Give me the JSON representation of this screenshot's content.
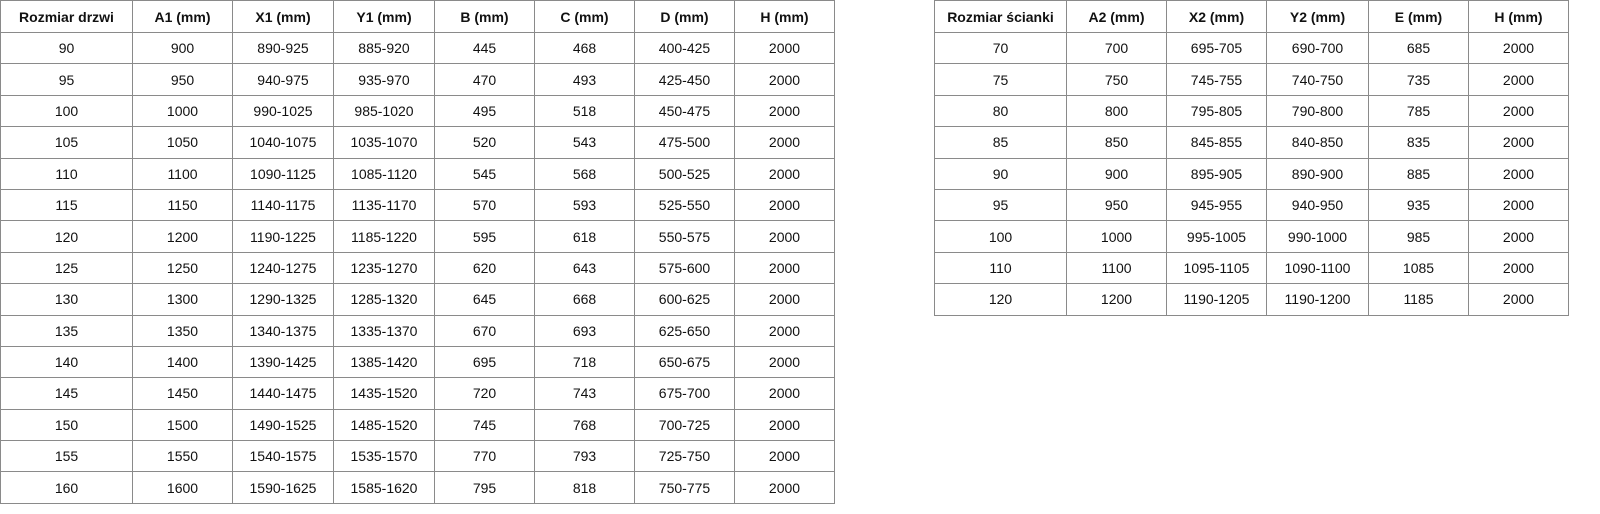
{
  "door_table": {
    "headers": [
      "Rozmiar drzwi",
      "A1 (mm)",
      "X1 (mm)",
      "Y1 (mm)",
      "B (mm)",
      "C (mm)",
      "D (mm)",
      "H (mm)"
    ],
    "rows": [
      [
        "90",
        "900",
        "890-925",
        "885-920",
        "445",
        "468",
        "400-425",
        "2000"
      ],
      [
        "95",
        "950",
        "940-975",
        "935-970",
        "470",
        "493",
        "425-450",
        "2000"
      ],
      [
        "100",
        "1000",
        "990-1025",
        "985-1020",
        "495",
        "518",
        "450-475",
        "2000"
      ],
      [
        "105",
        "1050",
        "1040-1075",
        "1035-1070",
        "520",
        "543",
        "475-500",
        "2000"
      ],
      [
        "110",
        "1100",
        "1090-1125",
        "1085-1120",
        "545",
        "568",
        "500-525",
        "2000"
      ],
      [
        "115",
        "1150",
        "1140-1175",
        "1135-1170",
        "570",
        "593",
        "525-550",
        "2000"
      ],
      [
        "120",
        "1200",
        "1190-1225",
        "1185-1220",
        "595",
        "618",
        "550-575",
        "2000"
      ],
      [
        "125",
        "1250",
        "1240-1275",
        "1235-1270",
        "620",
        "643",
        "575-600",
        "2000"
      ],
      [
        "130",
        "1300",
        "1290-1325",
        "1285-1320",
        "645",
        "668",
        "600-625",
        "2000"
      ],
      [
        "135",
        "1350",
        "1340-1375",
        "1335-1370",
        "670",
        "693",
        "625-650",
        "2000"
      ],
      [
        "140",
        "1400",
        "1390-1425",
        "1385-1420",
        "695",
        "718",
        "650-675",
        "2000"
      ],
      [
        "145",
        "1450",
        "1440-1475",
        "1435-1520",
        "720",
        "743",
        "675-700",
        "2000"
      ],
      [
        "150",
        "1500",
        "1490-1525",
        "1485-1520",
        "745",
        "768",
        "700-725",
        "2000"
      ],
      [
        "155",
        "1550",
        "1540-1575",
        "1535-1570",
        "770",
        "793",
        "725-750",
        "2000"
      ],
      [
        "160",
        "1600",
        "1590-1625",
        "1585-1620",
        "795",
        "818",
        "750-775",
        "2000"
      ]
    ]
  },
  "wall_table": {
    "headers": [
      "Rozmiar ścianki",
      "A2 (mm)",
      "X2 (mm)",
      "Y2 (mm)",
      "E (mm)",
      "H (mm)"
    ],
    "rows": [
      [
        "70",
        "700",
        "695-705",
        "690-700",
        "685",
        "2000"
      ],
      [
        "75",
        "750",
        "745-755",
        "740-750",
        "735",
        "2000"
      ],
      [
        "80",
        "800",
        "795-805",
        "790-800",
        "785",
        "2000"
      ],
      [
        "85",
        "850",
        "845-855",
        "840-850",
        "835",
        "2000"
      ],
      [
        "90",
        "900",
        "895-905",
        "890-900",
        "885",
        "2000"
      ],
      [
        "95",
        "950",
        "945-955",
        "940-950",
        "935",
        "2000"
      ],
      [
        "100",
        "1000",
        "995-1005",
        "990-1000",
        "985",
        "2000"
      ],
      [
        "110",
        "1100",
        "1095-1105",
        "1090-1100",
        "1085",
        "2000"
      ],
      [
        "120",
        "1200",
        "1190-1205",
        "1190-1200",
        "1185",
        "2000"
      ]
    ]
  }
}
